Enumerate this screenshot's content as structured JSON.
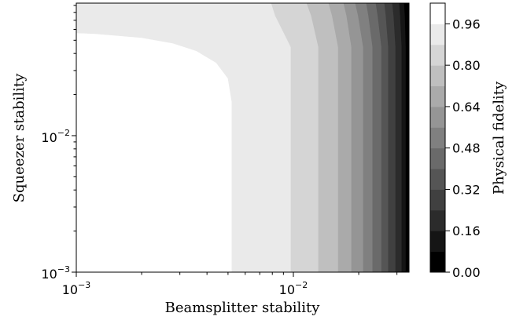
{
  "chart_data": {
    "type": "contour",
    "x_label": "Beamsplitter stability",
    "y_label": "Squeezer stability",
    "colorbar_label": "Physical fidelity",
    "xscale": "log",
    "yscale": "log",
    "xlim": [
      0.001,
      0.0341
    ],
    "ylim": [
      0.001,
      0.0935
    ],
    "xticks": [
      {
        "value": 0.001,
        "label": "10",
        "exponent": "−3"
      },
      {
        "value": 0.01,
        "label": "10",
        "exponent": "−2"
      }
    ],
    "yticks": [
      {
        "value": 0.001,
        "label": "10",
        "exponent": "−3"
      },
      {
        "value": 0.01,
        "label": "10",
        "exponent": "−2"
      }
    ],
    "xminorticks": [
      0.002,
      0.003,
      0.004,
      0.005,
      0.006,
      0.007,
      0.008,
      0.009,
      0.02,
      0.03
    ],
    "yminorticks": [
      0.002,
      0.003,
      0.004,
      0.005,
      0.006,
      0.007,
      0.008,
      0.009,
      0.02,
      0.03,
      0.04,
      0.05,
      0.06,
      0.07,
      0.08,
      0.09
    ],
    "colormap": "gray",
    "levels": [
      0,
      0.08,
      0.16,
      0.24,
      0.32,
      0.4,
      0.48,
      0.56,
      0.64,
      0.72,
      0.8,
      0.88,
      0.96,
      1.04
    ],
    "colorbar_ticks": [
      {
        "value": 0,
        "label": "0.00"
      },
      {
        "value": 0.16,
        "label": "0.16"
      },
      {
        "value": 0.32,
        "label": "0.32"
      },
      {
        "value": 0.48,
        "label": "0.48"
      },
      {
        "value": 0.64,
        "label": "0.64"
      },
      {
        "value": 0.8,
        "label": "0.80"
      },
      {
        "value": 0.96,
        "label": "0.96"
      }
    ],
    "contours": [
      {
        "level": 0.96,
        "x": [
          0.00521,
          0.00521,
          0.005,
          0.00442,
          0.00358,
          0.00279,
          0.002,
          0.00121,
          0.001
        ],
        "y": [
          0.001,
          0.0177,
          0.0263,
          0.0342,
          0.0418,
          0.0476,
          0.0523,
          0.0559,
          0.0566
        ]
      },
      {
        "level": 0.88,
        "x": [
          0.00975,
          0.00975,
          0.00826,
          0.00792
        ],
        "y": [
          0.001,
          0.0446,
          0.0757,
          0.0935
        ]
      },
      {
        "level": 0.8,
        "x": [
          0.01306,
          0.01306,
          0.0121,
          0.01153
        ],
        "y": [
          0.001,
          0.0446,
          0.0757,
          0.0935
        ]
      },
      {
        "level": 0.72,
        "x": [
          0.0161,
          0.0161,
          0.0151,
          0.01455
        ],
        "y": [
          0.001,
          0.0446,
          0.0757,
          0.0935
        ]
      },
      {
        "level": 0.64,
        "x": [
          0.01854,
          0.01854,
          0.0176,
          0.01706
        ],
        "y": [
          0.001,
          0.0446,
          0.0757,
          0.0935
        ]
      },
      {
        "level": 0.56,
        "x": [
          0.021,
          0.021,
          0.0199,
          0.0193
        ],
        "y": [
          0.001,
          0.0446,
          0.0757,
          0.0935
        ]
      },
      {
        "level": 0.48,
        "x": [
          0.0232,
          0.0232,
          0.0222,
          0.0217
        ],
        "y": [
          0.001,
          0.0446,
          0.0757,
          0.0935
        ]
      },
      {
        "level": 0.4,
        "x": [
          0.0255,
          0.0255,
          0.0245,
          0.024
        ],
        "y": [
          0.001,
          0.0446,
          0.0757,
          0.0935
        ]
      },
      {
        "level": 0.32,
        "x": [
          0.0274,
          0.0274,
          0.0267,
          0.0263
        ],
        "y": [
          0.001,
          0.0446,
          0.0757,
          0.0935
        ]
      },
      {
        "level": 0.24,
        "x": [
          0.0296,
          0.0296,
          0.029,
          0.0286
        ],
        "y": [
          0.001,
          0.0446,
          0.0757,
          0.0935
        ]
      },
      {
        "level": 0.16,
        "x": [
          0.0316,
          0.0316,
          0.0311,
          0.0308
        ],
        "y": [
          0.001,
          0.0446,
          0.0757,
          0.0935
        ]
      },
      {
        "level": 0.08,
        "x": [
          0.033,
          0.033,
          0.0327,
          0.0324
        ],
        "y": [
          0.001,
          0.0446,
          0.0757,
          0.0935
        ]
      }
    ]
  }
}
